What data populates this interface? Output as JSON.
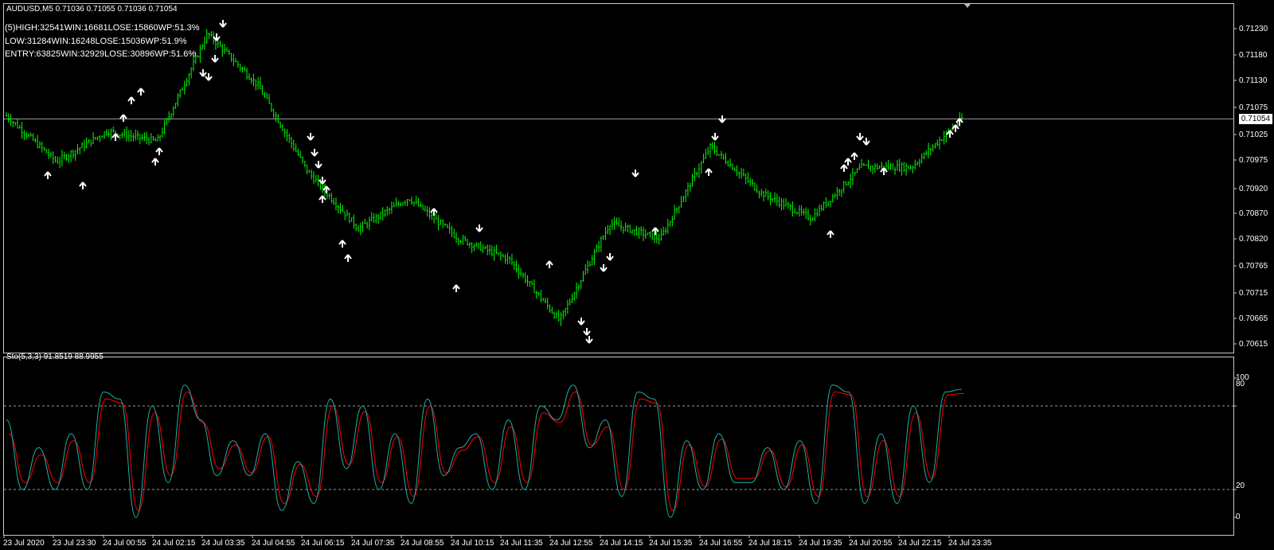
{
  "header": {
    "symbol_info": "AUDUSD,M5  0.71036 0.71055 0.71036 0.71054"
  },
  "stats": [
    "(5)HIGH:32541WIN:16681LOSE:15860WP:51.3%",
    "LOW:31284WIN:16248LOSE:15036WP:51.9%",
    "ENTRY:63825WIN:32929LOSE:30896WP:51.6%"
  ],
  "price_axis": [
    "0.71230",
    "0.71180",
    "0.71130",
    "0.71075",
    "0.71025",
    "0.70975",
    "0.70920",
    "0.70870",
    "0.70820",
    "0.70765",
    "0.70715",
    "0.70665",
    "0.70615"
  ],
  "bid_price": "0.71054",
  "indicator": {
    "label": "Sto(5,3,3) 91.8519 88.9955",
    "levels": [
      "100",
      "80",
      "20",
      "0"
    ]
  },
  "time_axis": [
    "23 Jul 2020",
    "23 Jul 23:30",
    "24 Jul 00:55",
    "24 Jul 02:15",
    "24 Jul 03:35",
    "24 Jul 04:55",
    "24 Jul 06:15",
    "24 Jul 07:35",
    "24 Jul 08:55",
    "24 Jul 10:15",
    "24 Jul 11:35",
    "24 Jul 12:55",
    "24 Jul 14:15",
    "24 Jul 15:35",
    "24 Jul 16:55",
    "24 Jul 18:15",
    "24 Jul 19:35",
    "24 Jul 20:55",
    "24 Jul 22:15",
    "24 Jul 23:35"
  ],
  "colors": {
    "candles": "#00ff00",
    "arrows": "#ffffff",
    "sto_main": "#20b2aa",
    "sto_signal": "#ff0000",
    "border": "#c8c8c8"
  },
  "chart_data": [
    {
      "type": "line",
      "title": "AUDUSD,M5",
      "x_range": [
        "23 Jul 2020",
        "24 Jul 23:35"
      ],
      "ylim": [
        0.70615,
        0.7123
      ],
      "series": [
        {
          "x": [
            "23 Jul 2020",
            "23 Jul 23:30",
            "24 Jul 00:55",
            "24 Jul 02:15",
            "24 Jul 03:35",
            "24 Jul 04:55",
            "24 Jul 06:15",
            "24 Jul 07:35",
            "24 Jul 08:55",
            "24 Jul 10:15",
            "24 Jul 11:35",
            "24 Jul 12:55",
            "24 Jul 14:15",
            "24 Jul 15:35",
            "24 Jul 16:55",
            "24 Jul 18:15",
            "24 Jul 19:35",
            "24 Jul 20:55",
            "24 Jul 22:15",
            "24 Jul 23:35"
          ],
          "values": [
            0.7106,
            0.7097,
            0.7103,
            0.7101,
            0.7122,
            0.7112,
            0.7095,
            0.7084,
            0.709,
            0.7082,
            0.7078,
            0.7066,
            0.7085,
            0.7082,
            0.71,
            0.7091,
            0.7086,
            0.7096,
            0.7096,
            0.71054
          ]
        }
      ]
    },
    {
      "type": "line",
      "title": "Sto(5,3,3) 91.8519 88.9955",
      "ylim": [
        0,
        100
      ],
      "levels": [
        20,
        80
      ],
      "series": [
        {
          "values": [
            70,
            20,
            50,
            20,
            60,
            20,
            90,
            85,
            0,
            80,
            25,
            95,
            70,
            30,
            55,
            30,
            60,
            5,
            40,
            10,
            85,
            35,
            80,
            20,
            60,
            10,
            85,
            30,
            50,
            60,
            20,
            70,
            20,
            80,
            70,
            95,
            50,
            70,
            15,
            90,
            85,
            0,
            55,
            20,
            60,
            25,
            25,
            50,
            20,
            55,
            10,
            95,
            90,
            10,
            60,
            10,
            80,
            25,
            90,
            92
          ]
        },
        {
          "values": [
            60,
            25,
            45,
            25,
            55,
            25,
            85,
            82,
            5,
            75,
            30,
            90,
            68,
            35,
            52,
            32,
            58,
            10,
            38,
            15,
            80,
            38,
            76,
            25,
            58,
            15,
            80,
            32,
            48,
            58,
            25,
            65,
            25,
            75,
            68,
            90,
            52,
            65,
            20,
            85,
            82,
            5,
            52,
            22,
            56,
            28,
            28,
            48,
            22,
            52,
            15,
            90,
            88,
            15,
            55,
            15,
            75,
            28,
            88,
            89
          ]
        }
      ]
    }
  ]
}
